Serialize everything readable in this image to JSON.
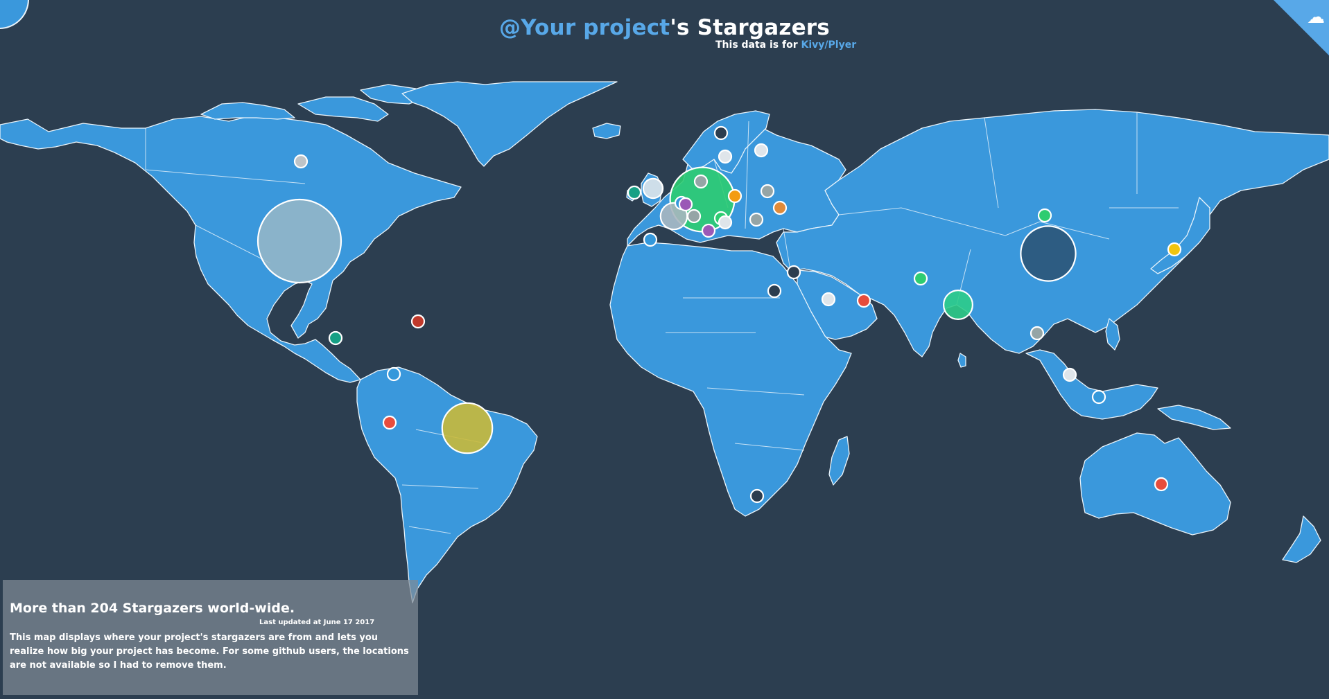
{
  "header": {
    "title_accent": "@Your project",
    "title_rest": "'s Stargazers",
    "subtitle_prefix": "This data is for ",
    "subtitle_repo": "Kivy/Plyer"
  },
  "info": {
    "headline": "More than 204 Stargazers world-wide.",
    "updated": "Last updated at June 17 2017",
    "description": "This map displays where your project's stargazers are from and lets you realize how big your project has become. For some github users, the locations are not available so I had to remove them."
  },
  "colors": {
    "ocean": "#2c3e50",
    "land": "#3a98dc",
    "accent": "#58a8e8"
  },
  "icons": {
    "corner": "octocat-icon"
  },
  "map_data": {
    "type": "bubble-map",
    "bubbles": [
      {
        "name": "united-states",
        "value": 30,
        "color": "#93b6c8"
      },
      {
        "name": "brazil",
        "value": 16,
        "color": "#c9b93a"
      },
      {
        "name": "china",
        "value": 18,
        "color": "#2c5578"
      },
      {
        "name": "germany",
        "value": 22,
        "color": "#2ecc71"
      },
      {
        "name": "india",
        "value": 7,
        "color": "#2ecc8a"
      },
      {
        "name": "france",
        "value": 6,
        "color": "#a9b6bf"
      },
      {
        "name": "united-kingdom",
        "value": 3,
        "color": "#dfe5ea"
      },
      {
        "name": "canada",
        "value": 1,
        "color": "#bdc3c7"
      },
      {
        "name": "norway",
        "value": 1,
        "color": "#2c3e50"
      },
      {
        "name": "sweden",
        "value": 1,
        "color": "#dfe5ea"
      },
      {
        "name": "finland",
        "value": 1,
        "color": "#dfe5ea"
      },
      {
        "name": "ireland",
        "value": 1,
        "color": "#16a085"
      },
      {
        "name": "netherlands",
        "value": 1,
        "color": "#95a5a6"
      },
      {
        "name": "belgium",
        "value": 1,
        "color": "#3498db"
      },
      {
        "name": "luxembourg",
        "value": 1,
        "color": "#9b59b6"
      },
      {
        "name": "switzerland",
        "value": 1,
        "color": "#95a5a6"
      },
      {
        "name": "poland",
        "value": 1,
        "color": "#f39c12"
      },
      {
        "name": "belarus",
        "value": 1,
        "color": "#95a5a6"
      },
      {
        "name": "ukraine",
        "value": 1,
        "color": "#e08b3a"
      },
      {
        "name": "austria",
        "value": 1,
        "color": "#2ecc71"
      },
      {
        "name": "italy",
        "value": 1,
        "color": "#9b59b6"
      },
      {
        "name": "croatia",
        "value": 1,
        "color": "#dfe5ea"
      },
      {
        "name": "romania",
        "value": 1,
        "color": "#95a5a6"
      },
      {
        "name": "spain",
        "value": 1,
        "color": "#3498db"
      },
      {
        "name": "turkey-sea",
        "value": 1,
        "color": "#2c3e50"
      },
      {
        "name": "egypt",
        "value": 1,
        "color": "#2c3e50"
      },
      {
        "name": "saudi-arabia",
        "value": 1,
        "color": "#dfe5ea"
      },
      {
        "name": "uae",
        "value": 1,
        "color": "#e74c3c"
      },
      {
        "name": "pakistan",
        "value": 1,
        "color": "#2ecc71"
      },
      {
        "name": "mongolia",
        "value": 1,
        "color": "#2ecc71"
      },
      {
        "name": "japan",
        "value": 1,
        "color": "#f1c40f"
      },
      {
        "name": "thailand",
        "value": 1,
        "color": "#95a5a6"
      },
      {
        "name": "malaysia",
        "value": 1,
        "color": "#dfe5ea"
      },
      {
        "name": "indonesia",
        "value": 1,
        "color": "#3498db"
      },
      {
        "name": "australia",
        "value": 1,
        "color": "#e74c3c"
      },
      {
        "name": "south-africa",
        "value": 1,
        "color": "#2c3e50"
      },
      {
        "name": "mexico-guatemala",
        "value": 1,
        "color": "#16a085"
      },
      {
        "name": "dominican-republic",
        "value": 1,
        "color": "#c0392b"
      },
      {
        "name": "colombia",
        "value": 1,
        "color": "#3498db"
      },
      {
        "name": "peru",
        "value": 1,
        "color": "#e74c3c"
      }
    ]
  }
}
